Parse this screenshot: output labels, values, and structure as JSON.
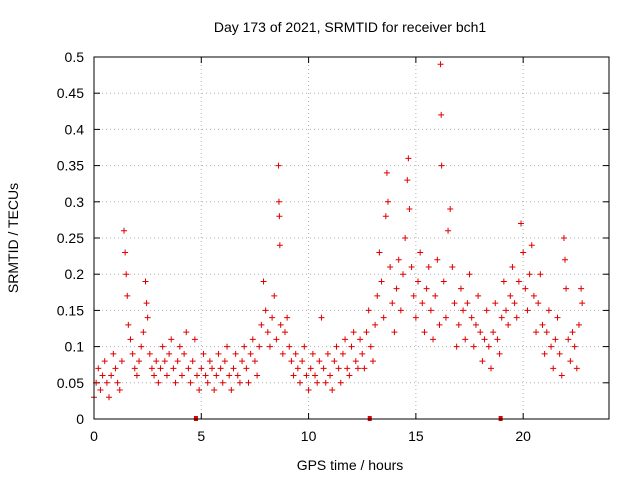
{
  "chart_data": {
    "type": "scatter",
    "title": "Day 173 of 2021, SRMTID for receiver bch1",
    "xlabel": "GPS time / hours",
    "ylabel": "SRMTID / TECUs",
    "xlim": [
      0,
      24
    ],
    "ylim": [
      0,
      0.5
    ],
    "x_ticks": [
      {
        "value": 0,
        "label": "0"
      },
      {
        "value": 5,
        "label": "5"
      },
      {
        "value": 10,
        "label": "10"
      },
      {
        "value": 15,
        "label": "15"
      },
      {
        "value": 20,
        "label": "20"
      }
    ],
    "y_ticks": [
      {
        "value": 0,
        "label": "0"
      },
      {
        "value": 0.05,
        "label": "0.05"
      },
      {
        "value": 0.1,
        "label": "0.1"
      },
      {
        "value": 0.15,
        "label": "0.15"
      },
      {
        "value": 0.2,
        "label": "0.2"
      },
      {
        "value": 0.25,
        "label": "0.25"
      },
      {
        "value": 0.3,
        "label": "0.3"
      },
      {
        "value": 0.35,
        "label": "0.35"
      },
      {
        "value": 0.4,
        "label": "0.4"
      },
      {
        "value": 0.45,
        "label": "0.45"
      },
      {
        "value": 0.5,
        "label": "0.5"
      }
    ],
    "grid": true,
    "marker": "+",
    "color": "#e00000",
    "axis_markers_x": [
      4.75,
      12.85,
      18.95
    ],
    "series": [
      {
        "name": "SRMTID",
        "points": [
          [
            0.0,
            0.03
          ],
          [
            0.1,
            0.05
          ],
          [
            0.2,
            0.07
          ],
          [
            0.3,
            0.04
          ],
          [
            0.4,
            0.06
          ],
          [
            0.5,
            0.08
          ],
          [
            0.6,
            0.05
          ],
          [
            0.7,
            0.03
          ],
          [
            0.8,
            0.06
          ],
          [
            0.9,
            0.09
          ],
          [
            1.0,
            0.07
          ],
          [
            1.1,
            0.05
          ],
          [
            1.2,
            0.04
          ],
          [
            1.3,
            0.08
          ],
          [
            1.4,
            0.26
          ],
          [
            1.45,
            0.23
          ],
          [
            1.5,
            0.2
          ],
          [
            1.55,
            0.17
          ],
          [
            1.6,
            0.13
          ],
          [
            1.7,
            0.11
          ],
          [
            1.8,
            0.09
          ],
          [
            1.9,
            0.07
          ],
          [
            2.0,
            0.06
          ],
          [
            2.1,
            0.08
          ],
          [
            2.2,
            0.1
          ],
          [
            2.3,
            0.12
          ],
          [
            2.4,
            0.19
          ],
          [
            2.45,
            0.16
          ],
          [
            2.5,
            0.14
          ],
          [
            2.6,
            0.09
          ],
          [
            2.7,
            0.07
          ],
          [
            2.8,
            0.06
          ],
          [
            2.9,
            0.08
          ],
          [
            3.0,
            0.05
          ],
          [
            3.1,
            0.07
          ],
          [
            3.2,
            0.1
          ],
          [
            3.3,
            0.08
          ],
          [
            3.4,
            0.06
          ],
          [
            3.5,
            0.09
          ],
          [
            3.6,
            0.11
          ],
          [
            3.7,
            0.07
          ],
          [
            3.8,
            0.05
          ],
          [
            3.9,
            0.08
          ],
          [
            4.0,
            0.1
          ],
          [
            4.1,
            0.06
          ],
          [
            4.2,
            0.09
          ],
          [
            4.3,
            0.12
          ],
          [
            4.4,
            0.07
          ],
          [
            4.5,
            0.05
          ],
          [
            4.6,
            0.08
          ],
          [
            4.7,
            0.11
          ],
          [
            4.8,
            0.06
          ],
          [
            4.9,
            0.04
          ],
          [
            5.0,
            0.07
          ],
          [
            5.1,
            0.09
          ],
          [
            5.2,
            0.06
          ],
          [
            5.3,
            0.05
          ],
          [
            5.4,
            0.08
          ],
          [
            5.5,
            0.07
          ],
          [
            5.6,
            0.04
          ],
          [
            5.7,
            0.06
          ],
          [
            5.8,
            0.09
          ],
          [
            5.9,
            0.07
          ],
          [
            6.0,
            0.05
          ],
          [
            6.1,
            0.08
          ],
          [
            6.2,
            0.1
          ],
          [
            6.3,
            0.06
          ],
          [
            6.4,
            0.04
          ],
          [
            6.5,
            0.07
          ],
          [
            6.6,
            0.09
          ],
          [
            6.7,
            0.06
          ],
          [
            6.8,
            0.05
          ],
          [
            6.9,
            0.08
          ],
          [
            7.0,
            0.1
          ],
          [
            7.1,
            0.07
          ],
          [
            7.2,
            0.05
          ],
          [
            7.3,
            0.09
          ],
          [
            7.4,
            0.11
          ],
          [
            7.5,
            0.08
          ],
          [
            7.6,
            0.06
          ],
          [
            7.7,
            0.1
          ],
          [
            7.8,
            0.13
          ],
          [
            7.9,
            0.19
          ],
          [
            8.0,
            0.15
          ],
          [
            8.1,
            0.12
          ],
          [
            8.2,
            0.1
          ],
          [
            8.3,
            0.14
          ],
          [
            8.4,
            0.17
          ],
          [
            8.5,
            0.11
          ],
          [
            8.6,
            0.35
          ],
          [
            8.62,
            0.3
          ],
          [
            8.64,
            0.28
          ],
          [
            8.66,
            0.24
          ],
          [
            8.7,
            0.13
          ],
          [
            8.8,
            0.09
          ],
          [
            8.9,
            0.12
          ],
          [
            9.0,
            0.14
          ],
          [
            9.1,
            0.1
          ],
          [
            9.2,
            0.08
          ],
          [
            9.3,
            0.06
          ],
          [
            9.4,
            0.09
          ],
          [
            9.5,
            0.07
          ],
          [
            9.6,
            0.05
          ],
          [
            9.7,
            0.08
          ],
          [
            9.8,
            0.1
          ],
          [
            9.9,
            0.06
          ],
          [
            10.0,
            0.04
          ],
          [
            10.1,
            0.07
          ],
          [
            10.2,
            0.09
          ],
          [
            10.3,
            0.06
          ],
          [
            10.4,
            0.05
          ],
          [
            10.5,
            0.08
          ],
          [
            10.6,
            0.14
          ],
          [
            10.7,
            0.07
          ],
          [
            10.8,
            0.05
          ],
          [
            10.9,
            0.09
          ],
          [
            11.0,
            0.06
          ],
          [
            11.1,
            0.04
          ],
          [
            11.2,
            0.08
          ],
          [
            11.3,
            0.1
          ],
          [
            11.4,
            0.07
          ],
          [
            11.5,
            0.05
          ],
          [
            11.6,
            0.09
          ],
          [
            11.7,
            0.11
          ],
          [
            11.8,
            0.07
          ],
          [
            11.9,
            0.06
          ],
          [
            12.0,
            0.1
          ],
          [
            12.1,
            0.12
          ],
          [
            12.2,
            0.08
          ],
          [
            12.3,
            0.07
          ],
          [
            12.4,
            0.11
          ],
          [
            12.5,
            0.09
          ],
          [
            12.6,
            0.07
          ],
          [
            12.7,
            0.12
          ],
          [
            12.8,
            0.15
          ],
          [
            12.9,
            0.1
          ],
          [
            13.0,
            0.08
          ],
          [
            13.1,
            0.13
          ],
          [
            13.2,
            0.17
          ],
          [
            13.3,
            0.23
          ],
          [
            13.4,
            0.19
          ],
          [
            13.5,
            0.14
          ],
          [
            13.6,
            0.28
          ],
          [
            13.65,
            0.34
          ],
          [
            13.7,
            0.3
          ],
          [
            13.8,
            0.21
          ],
          [
            13.9,
            0.16
          ],
          [
            14.0,
            0.12
          ],
          [
            14.1,
            0.18
          ],
          [
            14.2,
            0.22
          ],
          [
            14.3,
            0.15
          ],
          [
            14.4,
            0.2
          ],
          [
            14.5,
            0.25
          ],
          [
            14.6,
            0.33
          ],
          [
            14.65,
            0.36
          ],
          [
            14.7,
            0.29
          ],
          [
            14.8,
            0.21
          ],
          [
            14.9,
            0.17
          ],
          [
            15.0,
            0.14
          ],
          [
            15.1,
            0.19
          ],
          [
            15.2,
            0.23
          ],
          [
            15.3,
            0.16
          ],
          [
            15.4,
            0.12
          ],
          [
            15.5,
            0.18
          ],
          [
            15.6,
            0.21
          ],
          [
            15.7,
            0.15
          ],
          [
            15.8,
            0.11
          ],
          [
            15.9,
            0.17
          ],
          [
            16.0,
            0.22
          ],
          [
            16.1,
            0.13
          ],
          [
            16.15,
            0.49
          ],
          [
            16.18,
            0.42
          ],
          [
            16.2,
            0.35
          ],
          [
            16.3,
            0.19
          ],
          [
            16.4,
            0.14
          ],
          [
            16.5,
            0.26
          ],
          [
            16.6,
            0.29
          ],
          [
            16.7,
            0.21
          ],
          [
            16.8,
            0.16
          ],
          [
            16.9,
            0.1
          ],
          [
            17.0,
            0.13
          ],
          [
            17.1,
            0.18
          ],
          [
            17.2,
            0.15
          ],
          [
            17.3,
            0.11
          ],
          [
            17.4,
            0.16
          ],
          [
            17.5,
            0.2
          ],
          [
            17.6,
            0.14
          ],
          [
            17.7,
            0.1
          ],
          [
            17.8,
            0.13
          ],
          [
            17.9,
            0.17
          ],
          [
            18.0,
            0.12
          ],
          [
            18.1,
            0.08
          ],
          [
            18.2,
            0.11
          ],
          [
            18.3,
            0.15
          ],
          [
            18.4,
            0.1
          ],
          [
            18.5,
            0.07
          ],
          [
            18.6,
            0.12
          ],
          [
            18.7,
            0.16
          ],
          [
            18.8,
            0.11
          ],
          [
            18.9,
            0.09
          ],
          [
            19.0,
            0.14
          ],
          [
            19.1,
            0.19
          ],
          [
            19.2,
            0.15
          ],
          [
            19.3,
            0.13
          ],
          [
            19.4,
            0.17
          ],
          [
            19.5,
            0.21
          ],
          [
            19.6,
            0.16
          ],
          [
            19.7,
            0.14
          ],
          [
            19.8,
            0.19
          ],
          [
            19.9,
            0.27
          ],
          [
            20.0,
            0.23
          ],
          [
            20.1,
            0.18
          ],
          [
            20.2,
            0.15
          ],
          [
            20.3,
            0.2
          ],
          [
            20.4,
            0.24
          ],
          [
            20.5,
            0.17
          ],
          [
            20.6,
            0.12
          ],
          [
            20.7,
            0.16
          ],
          [
            20.8,
            0.2
          ],
          [
            20.9,
            0.13
          ],
          [
            21.0,
            0.09
          ],
          [
            21.1,
            0.12
          ],
          [
            21.2,
            0.15
          ],
          [
            21.3,
            0.1
          ],
          [
            21.4,
            0.07
          ],
          [
            21.5,
            0.11
          ],
          [
            21.6,
            0.14
          ],
          [
            21.7,
            0.09
          ],
          [
            21.8,
            0.06
          ],
          [
            21.9,
            0.25
          ],
          [
            21.95,
            0.22
          ],
          [
            22.0,
            0.18
          ],
          [
            22.1,
            0.11
          ],
          [
            22.2,
            0.08
          ],
          [
            22.3,
            0.12
          ],
          [
            22.4,
            0.1
          ],
          [
            22.5,
            0.07
          ],
          [
            22.6,
            0.13
          ],
          [
            22.7,
            0.18
          ],
          [
            22.75,
            0.16
          ]
        ]
      }
    ]
  }
}
